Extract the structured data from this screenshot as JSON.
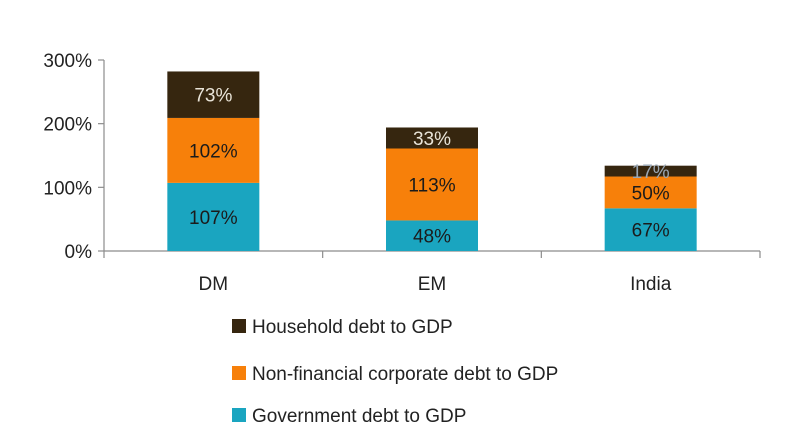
{
  "chart_data": {
    "type": "bar",
    "stacked": true,
    "categories": [
      "DM",
      "EM",
      "India"
    ],
    "series": [
      {
        "name": "Government debt to GDP",
        "values": [
          107,
          48,
          67
        ],
        "labels": [
          "107%",
          "48%",
          "67%"
        ],
        "color": "#1aa5c0"
      },
      {
        "name": "Non-financial corporate debt to GDP",
        "values": [
          102,
          113,
          50
        ],
        "labels": [
          "102%",
          "113%",
          "50%"
        ],
        "color": "#f7800a"
      },
      {
        "name": "Household debt to GDP",
        "values": [
          73,
          33,
          17
        ],
        "labels": [
          "73%",
          "33%",
          "17%"
        ],
        "color": "#36260f"
      }
    ],
    "legend_order": [
      "Household debt to GDP",
      "Non-financial corporate debt to GDP",
      "Government debt to GDP"
    ],
    "y_ticks": [
      0,
      100,
      200,
      300
    ],
    "y_tick_labels": [
      "0%",
      "100%",
      "200%",
      "300%"
    ],
    "ylim": [
      0,
      300
    ],
    "title": "",
    "xlabel": "",
    "ylabel": "",
    "grid": false,
    "legend_position": "bottom"
  }
}
